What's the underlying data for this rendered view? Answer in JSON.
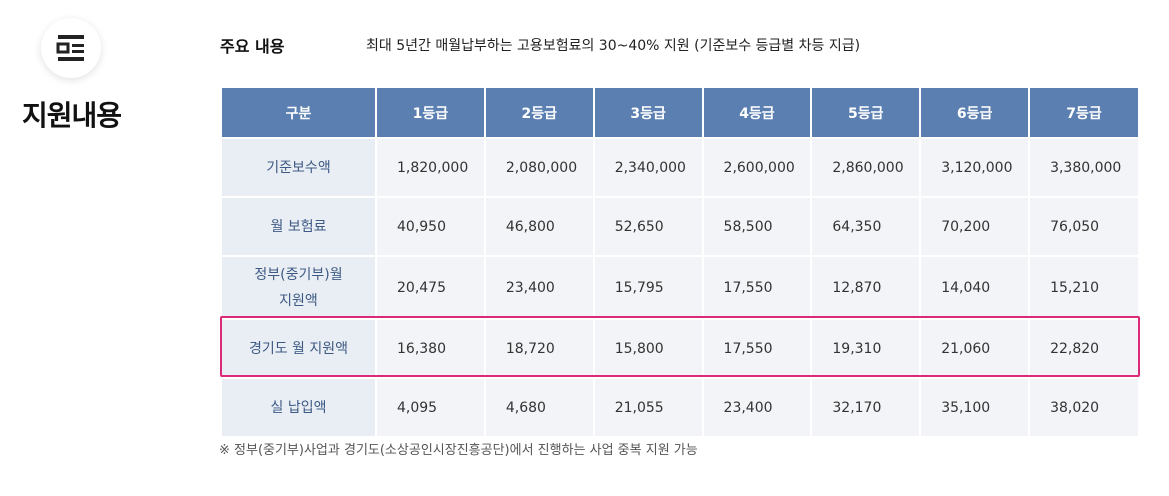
{
  "section": {
    "title": "지원내용",
    "icon": "document-list-icon"
  },
  "summary": {
    "label": "주요 내용",
    "text": "최대 5년간 매월납부하는 고용보험료의 30~40% 지원 (기준보수 등급별 차등 지급)"
  },
  "table": {
    "header": [
      "구분",
      "1등급",
      "2등급",
      "3등급",
      "4등급",
      "5등급",
      "6등급",
      "7등급"
    ],
    "rows": [
      {
        "label": "기준보수액",
        "values": [
          "1,820,000",
          "2,080,000",
          "2,340,000",
          "2,600,000",
          "2,860,000",
          "3,120,000",
          "3,380,000"
        ]
      },
      {
        "label": "월 보험료",
        "values": [
          "40,950",
          "46,800",
          "52,650",
          "58,500",
          "64,350",
          "70,200",
          "76,050"
        ]
      },
      {
        "label_line1": "정부(중기부)월",
        "label_line2": "지원액",
        "values": [
          "20,475",
          "23,400",
          "15,795",
          "17,550",
          "12,870",
          "14,040",
          "15,210"
        ]
      },
      {
        "label": "경기도 월 지원액",
        "values": [
          "16,380",
          "18,720",
          "15,800",
          "17,550",
          "19,310",
          "21,060",
          "22,820"
        ],
        "highlighted": true
      },
      {
        "label": "실 납입액",
        "values": [
          "4,095",
          "4,680",
          "21,055",
          "23,400",
          "32,170",
          "35,100",
          "38,020"
        ]
      }
    ]
  },
  "note": "※  정부(중기부)사업과 경기도(소상공인시장진흥공단)에서 진행하는 사업 중복 지원 가능",
  "colors": {
    "header_bg": "#5b7fb0",
    "rowhead_text": "#3e5a84",
    "cell_bg": "#f3f4f7",
    "highlight": "#dc2a78"
  }
}
